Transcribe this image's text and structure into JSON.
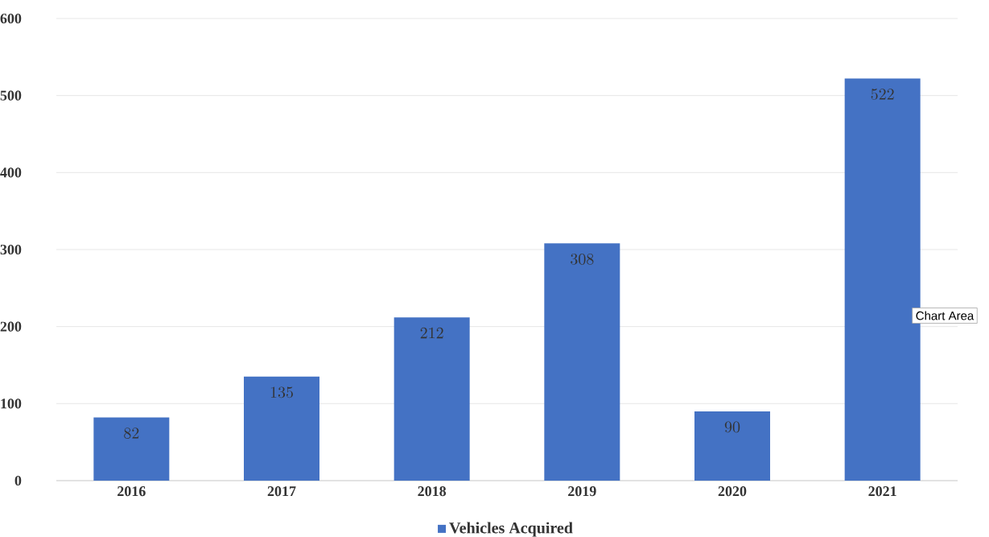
{
  "chart_data": {
    "type": "bar",
    "categories": [
      "2016",
      "2017",
      "2018",
      "2019",
      "2020",
      "2021"
    ],
    "series": [
      {
        "name": "Vehicles Acquired",
        "color": "#4472c4",
        "values": [
          82,
          135,
          212,
          308,
          90,
          522
        ]
      }
    ],
    "ylim": [
      0,
      600
    ],
    "yticks": [
      0,
      100,
      200,
      300,
      400,
      500,
      600
    ],
    "grid": "y",
    "legend": "bottom",
    "data_labels": true,
    "annotations": [
      "Chart Area"
    ]
  }
}
